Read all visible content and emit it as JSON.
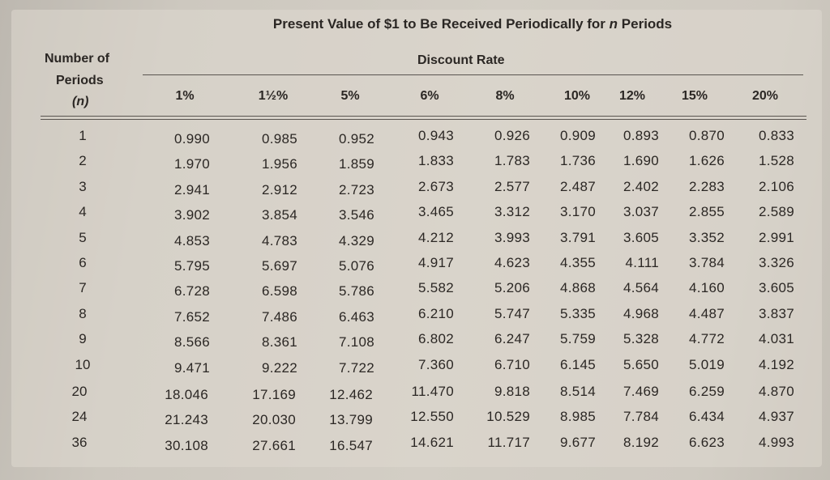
{
  "table": {
    "title_prefix": "Present Value of $1 to Be Received Periodically for",
    "title_var": "n",
    "title_suffix": "Periods",
    "row_header_line1": "Number of",
    "row_header_line2": "Periods",
    "row_header_line3": "(n)",
    "group_header": "Discount Rate",
    "columns": [
      "1%",
      "1½%",
      "5%",
      "6%",
      "8%",
      "10%",
      "12%",
      "15%",
      "20%"
    ],
    "periods": [
      "1",
      "2",
      "3",
      "4",
      "5",
      "6",
      "7",
      "8",
      "9",
      "10",
      "20",
      "24",
      "36"
    ],
    "rows": [
      [
        "0.990",
        "0.985",
        "0.952",
        "0.943",
        "0.926",
        "0.909",
        "0.893",
        "0.870",
        "0.833"
      ],
      [
        "1.970",
        "1.956",
        "1.859",
        "1.833",
        "1.783",
        "1.736",
        "1.690",
        "1.626",
        "1.528"
      ],
      [
        "2.941",
        "2.912",
        "2.723",
        "2.673",
        "2.577",
        "2.487",
        "2.402",
        "2.283",
        "2.106"
      ],
      [
        "3.902",
        "3.854",
        "3.546",
        "3.465",
        "3.312",
        "3.170",
        "3.037",
        "2.855",
        "2.589"
      ],
      [
        "4.853",
        "4.783",
        "4.329",
        "4.212",
        "3.993",
        "3.791",
        "3.605",
        "3.352",
        "2.991"
      ],
      [
        "5.795",
        "5.697",
        "5.076",
        "4.917",
        "4.623",
        "4.355",
        "4.111",
        "3.784",
        "3.326"
      ],
      [
        "6.728",
        "6.598",
        "5.786",
        "5.582",
        "5.206",
        "4.868",
        "4.564",
        "4.160",
        "3.605"
      ],
      [
        "7.652",
        "7.486",
        "6.463",
        "6.210",
        "5.747",
        "5.335",
        "4.968",
        "4.487",
        "3.837"
      ],
      [
        "8.566",
        "8.361",
        "7.108",
        "6.802",
        "6.247",
        "5.759",
        "5.328",
        "4.772",
        "4.031"
      ],
      [
        "9.471",
        "9.222",
        "7.722",
        "7.360",
        "6.710",
        "6.145",
        "5.650",
        "5.019",
        "4.192"
      ],
      [
        "18.046",
        "17.169",
        "12.462",
        "11.470",
        "9.818",
        "8.514",
        "7.469",
        "6.259",
        "4.870"
      ],
      [
        "21.243",
        "20.030",
        "13.799",
        "12.550",
        "10.529",
        "8.985",
        "7.784",
        "6.434",
        "4.937"
      ],
      [
        "30.108",
        "27.661",
        "16.547",
        "14.621",
        "11.717",
        "9.677",
        "8.192",
        "6.623",
        "4.993"
      ]
    ]
  }
}
